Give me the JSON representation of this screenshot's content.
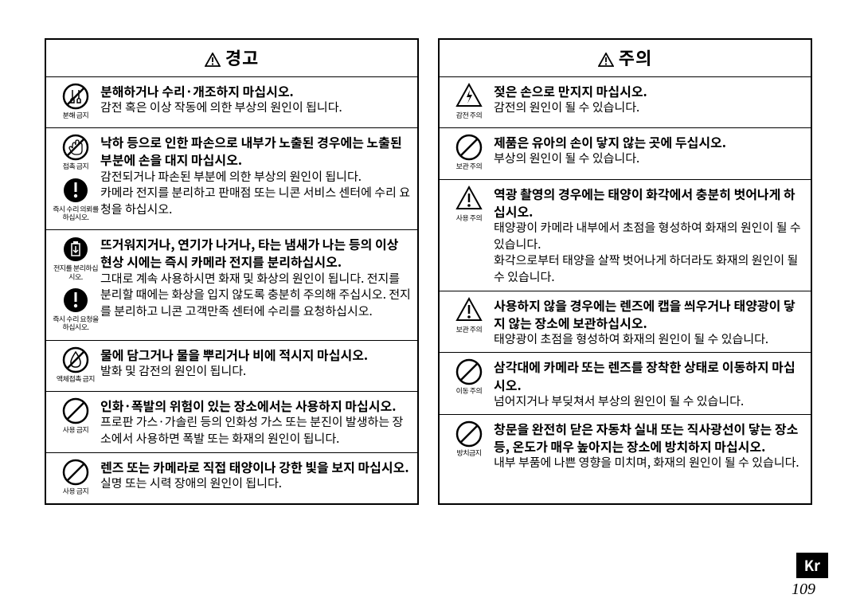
{
  "page_number": "109",
  "lang_tag": "Kr",
  "left": {
    "header": "경고",
    "sections": [
      {
        "icons": [
          {
            "type": "no-disassemble",
            "label": "분해 금지"
          }
        ],
        "bold": "분해하거나 수리·개조하지 마십시오.",
        "text": "감전 혹은 이상 작동에 의한 부상의 원인이 됩니다."
      },
      {
        "icons": [
          {
            "type": "no-touch",
            "label": "접촉 금지"
          },
          {
            "type": "must",
            "label": "즉시 수리 의뢰를 하십시오."
          }
        ],
        "bold": "낙하 등으로 인한 파손으로 내부가 노출된 경우에는 노출된 부분에 손을 대지 마십시오.",
        "text": "감전되거나 파손된 부분에 의한 부상의 원인이 됩니다.\n카메라 전지를 분리하고 판매점 또는 니콘 서비스 센터에 수리 요청을 하십시오."
      },
      {
        "icons": [
          {
            "type": "remove-battery",
            "label": "전지를 분리하십시오."
          },
          {
            "type": "must",
            "label": "즉시 수리 요청을 하십시오."
          }
        ],
        "bold": "뜨거워지거나, 연기가 나거나, 타는 냄새가 나는 등의 이상 현상 시에는 즉시 카메라 전지를 분리하십시오.",
        "text": "그대로 계속 사용하시면 화재 및 화상의 원인이 됩니다. 전지를 분리할 때에는 화상을 입지 않도록 충분히 주의해 주십시오. 전지를 분리하고 니콘 고객만족 센터에 수리를 요청하십시오."
      },
      {
        "icons": [
          {
            "type": "no-water",
            "label": "액체접촉 금지"
          }
        ],
        "bold": "물에 담그거나 물을 뿌리거나 비에 적시지 마십시오.",
        "text": "발화 및 감전의 원인이 됩니다."
      },
      {
        "icons": [
          {
            "type": "prohibit",
            "label": "사용 금지"
          }
        ],
        "bold": "인화·폭발의 위험이 있는 장소에서는 사용하지 마십시오.",
        "text": "프로판 가스·가솔린 등의 인화성 가스 또는 분진이 발생하는 장소에서 사용하면 폭발 또는 화재의 원인이 됩니다."
      },
      {
        "icons": [
          {
            "type": "prohibit",
            "label": "사용 금지"
          }
        ],
        "bold": "렌즈 또는 카메라로 직접 태양이나 강한 빛을 보지 마십시오.",
        "text": "실명 또는 시력 장애의 원인이 됩니다."
      }
    ]
  },
  "right": {
    "header": "주의",
    "sections": [
      {
        "icons": [
          {
            "type": "shock",
            "label": "감전 주의"
          }
        ],
        "bold": "젖은 손으로 만지지 마십시오.",
        "text": "감전의 원인이 될 수 있습니다."
      },
      {
        "icons": [
          {
            "type": "prohibit",
            "label": "보관 주의"
          }
        ],
        "bold": "제품은 유아의 손이 닿지 않는 곳에 두십시오.",
        "text": "부상의 원인이 될 수 있습니다."
      },
      {
        "icons": [
          {
            "type": "caution",
            "label": "사용 주의"
          }
        ],
        "bold": "역광 촬영의 경우에는 태양이 화각에서 충분히 벗어나게 하십시오.",
        "text": "태양광이 카메라 내부에서 초점을 형성하여 화재의 원인이 될 수 있습니다.\n화각으로부터 태양을 살짝 벗어나게 하더라도 화재의 원인이 될 수 있습니다."
      },
      {
        "icons": [
          {
            "type": "caution",
            "label": "보관 주의"
          }
        ],
        "bold": "사용하지 않을 경우에는 렌즈에 캡을 씌우거나 태양광이 닿지 않는 장소에 보관하십시오.",
        "text": "태양광이 초점을 형성하여 화재의 원인이 될 수 있습니다."
      },
      {
        "icons": [
          {
            "type": "prohibit",
            "label": "이동 주의"
          }
        ],
        "bold": "삼각대에 카메라 또는 렌즈를 장착한 상태로 이동하지 마십시오.",
        "text": "넘어지거나 부딪쳐서 부상의 원인이 될 수 있습니다."
      },
      {
        "icons": [
          {
            "type": "prohibit",
            "label": "방치금지"
          }
        ],
        "bold": "창문을 완전히 닫은 자동차 실내 또는 직사광선이 닿는 장소 등, 온도가 매우 높아지는 장소에 방치하지 마십시오.",
        "text": "내부 부품에 나쁜 영향을 미치며, 화재의 원인이 될 수 있습니다."
      }
    ]
  }
}
